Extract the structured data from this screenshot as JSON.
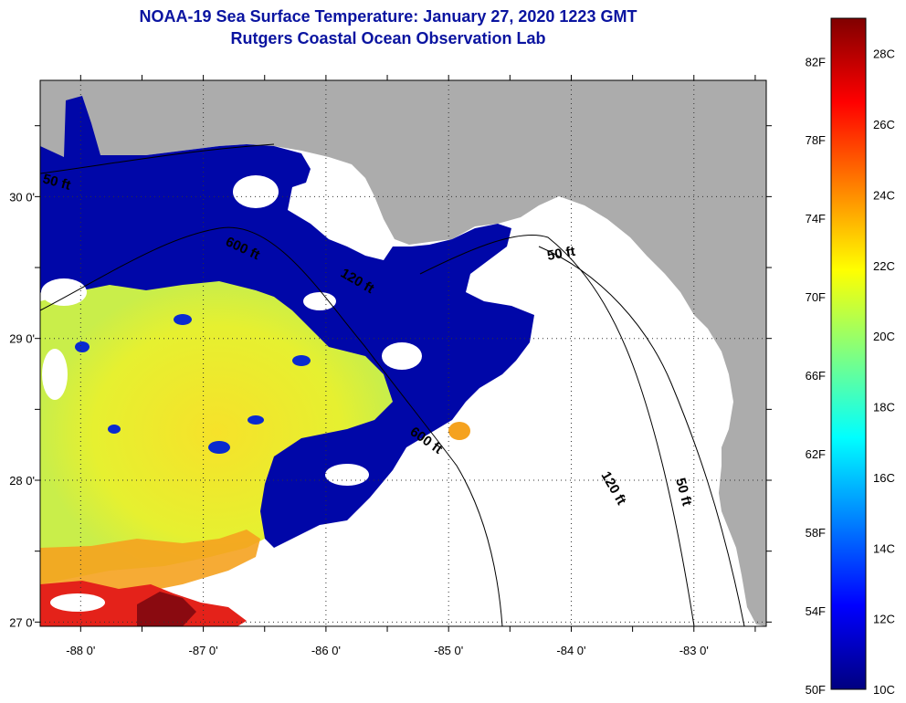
{
  "title": {
    "line1": "NOAA-19 Sea Surface Temperature:  January 27, 2020 1223 GMT",
    "line2": "Rutgers Coastal Ocean Observation Lab"
  },
  "map": {
    "longitudes": [
      -88,
      -87,
      -86,
      -85,
      -84,
      -83
    ],
    "latitudes": [
      27,
      28,
      29,
      30
    ],
    "longitude_labels": [
      "-88 0'",
      "-87 0'",
      "-86 0'",
      "-85 0'",
      "-84 0'",
      "-83 0'"
    ],
    "latitude_labels": [
      "27 0'",
      "28 0'",
      "29 0'",
      "30 0'"
    ],
    "lon_range": [
      -88.33,
      -82.41
    ],
    "lat_range": [
      26.97,
      30.82
    ],
    "grid": "dotted",
    "colors": {
      "land": "#acacac",
      "cloud": "#ffffff",
      "cold_water": "#0007a8",
      "frame": "#000000"
    },
    "contours": [
      {
        "label": "50 ft"
      },
      {
        "label": "600 ft"
      },
      {
        "label": "120 ft"
      },
      {
        "label": "50 ft"
      },
      {
        "label": "120 ft"
      },
      {
        "label": "50 ft"
      },
      {
        "label": "600 ft"
      }
    ]
  },
  "colorbar": {
    "range_celsius": [
      10,
      29
    ],
    "celsius_labels": [
      "28C",
      "26C",
      "24C",
      "22C",
      "20C",
      "18C",
      "16C",
      "14C",
      "12C",
      "10C"
    ],
    "celsius_values": [
      28,
      26,
      24,
      22,
      20,
      18,
      16,
      14,
      12,
      10
    ],
    "fahrenheit_labels": [
      "82F",
      "78F",
      "74F",
      "70F",
      "66F",
      "62F",
      "58F",
      "54F",
      "50F"
    ],
    "fahrenheit_values": [
      82,
      78,
      74,
      70,
      66,
      62,
      58,
      54,
      50
    ],
    "stops": [
      "#000080",
      "#0000ff",
      "#0080ff",
      "#00ffff",
      "#80ff80",
      "#ffff00",
      "#ff8000",
      "#ff0000",
      "#800000"
    ]
  }
}
